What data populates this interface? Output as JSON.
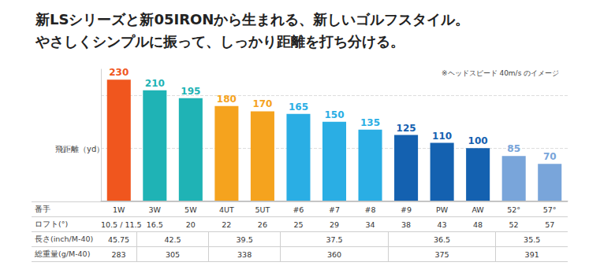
{
  "chart_data": {
    "type": "bar",
    "title": "新LSシリーズと新05IRONから生まれる、新しいゴルフスタイル。",
    "subtitle": "やさしくシンプルに振って、しっかり距離を打ち分ける。",
    "annotation": "※ヘッドスピード 40m/s のイメージ",
    "y_label": "飛距離（yd）",
    "categories": [
      "1W",
      "3W",
      "5W",
      "4UT",
      "5UT",
      "#6",
      "#7",
      "#8",
      "#9",
      "PW",
      "AW",
      "52°",
      "57°"
    ],
    "values": [
      230,
      210,
      195,
      180,
      170,
      165,
      150,
      135,
      125,
      110,
      100,
      85,
      70
    ],
    "colors": [
      "#f0561e",
      "#1fb3b5",
      "#1fb3b5",
      "#f5a31e",
      "#f5a31e",
      "#2aaee4",
      "#2aaee4",
      "#2aaee4",
      "#1461b0",
      "#1461b0",
      "#1461b0",
      "#79a5da",
      "#79a5da"
    ],
    "ylim": [
      0,
      250
    ],
    "yticks": [
      0,
      100,
      200
    ],
    "grid": true,
    "data_labels": true,
    "tick_labels": "x"
  },
  "table": {
    "header_label": "番手",
    "rows": [
      {
        "label": "ロフト(°)",
        "cells": [
          {
            "text": "10.5 / 11.5",
            "span": 1
          },
          {
            "text": 16.5,
            "span": 1
          },
          {
            "text": 20,
            "span": 1
          },
          {
            "text": 22,
            "span": 1
          },
          {
            "text": 26,
            "span": 1
          },
          {
            "text": 25,
            "span": 1
          },
          {
            "text": 29,
            "span": 1
          },
          {
            "text": 34,
            "span": 1
          },
          {
            "text": 38,
            "span": 1
          },
          {
            "text": 43,
            "span": 1
          },
          {
            "text": 48,
            "span": 1
          },
          {
            "text": 52,
            "span": 1
          },
          {
            "text": 57,
            "span": 1
          }
        ]
      },
      {
        "label": "長さ(inch/M-40)",
        "cells": [
          {
            "text": 45.75,
            "span": 1
          },
          {
            "text": 42.5,
            "span": 2
          },
          {
            "text": 39.5,
            "span": 2
          },
          {
            "text": 37.5,
            "span": 3
          },
          {
            "text": 36.5,
            "span": 3
          },
          {
            "text": 35.5,
            "span": 2
          }
        ]
      },
      {
        "label": "総重量(g/M-40)",
        "cells": [
          {
            "text": 283,
            "span": 1
          },
          {
            "text": 305,
            "span": 2
          },
          {
            "text": 338,
            "span": 2
          },
          {
            "text": 360,
            "span": 3
          },
          {
            "text": 375,
            "span": 3
          },
          {
            "text": 391,
            "span": 2
          }
        ]
      }
    ]
  }
}
